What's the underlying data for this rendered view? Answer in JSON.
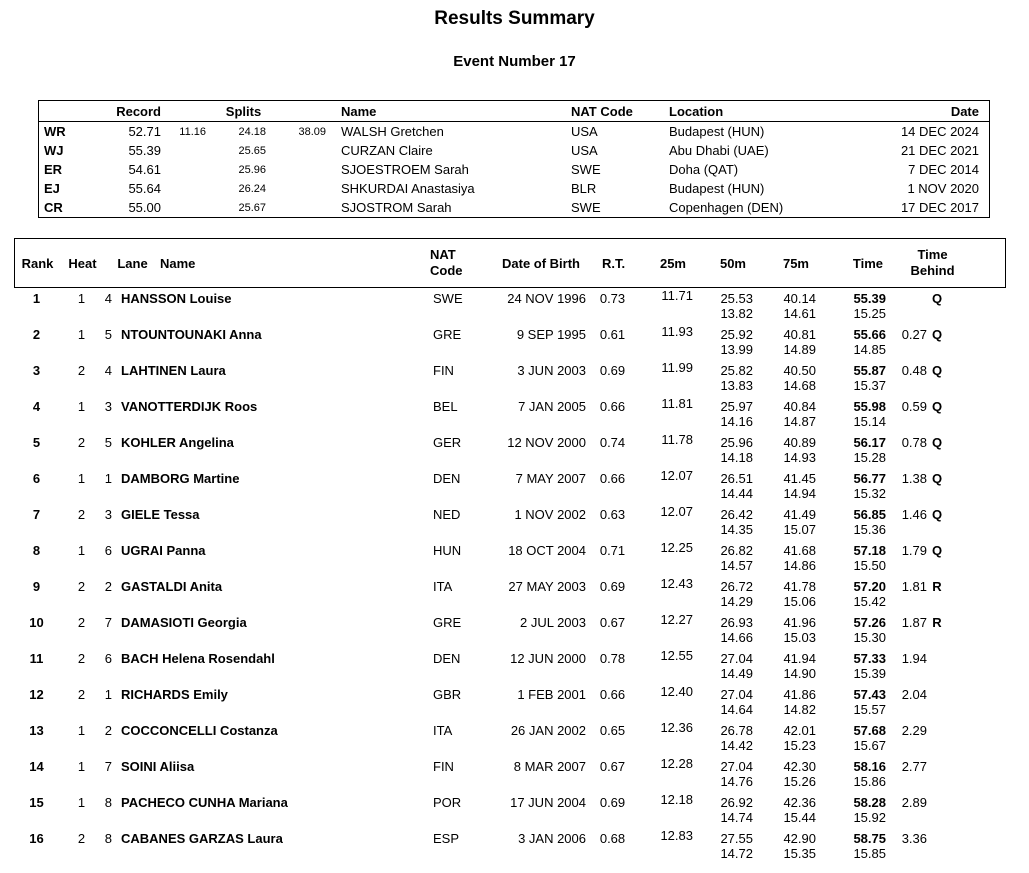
{
  "header": {
    "title": "Results Summary",
    "subtitle": "Event Number 17"
  },
  "colors": {
    "text": "#000000",
    "background": "#ffffff",
    "border": "#000000"
  },
  "records_table": {
    "headers": {
      "record": "Record",
      "splits": "Splits",
      "name": "Name",
      "nat_code": "NAT Code",
      "location": "Location",
      "date": "Date"
    },
    "rows": [
      {
        "tag": "WR",
        "time": "52.71",
        "split1": "11.16",
        "split2": "24.18",
        "split3": "38.09",
        "name": "WALSH Gretchen",
        "nat": "USA",
        "location": "Budapest (HUN)",
        "date": "14 DEC 2024"
      },
      {
        "tag": "WJ",
        "time": "55.39",
        "split1": "",
        "split2": "25.65",
        "split3": "",
        "name": "CURZAN Claire",
        "nat": "USA",
        "location": "Abu Dhabi (UAE)",
        "date": "21 DEC 2021"
      },
      {
        "tag": "ER",
        "time": "54.61",
        "split1": "",
        "split2": "25.96",
        "split3": "",
        "name": "SJOESTROEM Sarah",
        "nat": "SWE",
        "location": "Doha (QAT)",
        "date": "7 DEC 2014"
      },
      {
        "tag": "EJ",
        "time": "55.64",
        "split1": "",
        "split2": "26.24",
        "split3": "",
        "name": "SHKURDAI Anastasiya",
        "nat": "BLR",
        "location": "Budapest (HUN)",
        "date": "1 NOV 2020"
      },
      {
        "tag": "CR",
        "time": "55.00",
        "split1": "",
        "split2": "25.67",
        "split3": "",
        "name": "SJOSTROM Sarah",
        "nat": "SWE",
        "location": "Copenhagen (DEN)",
        "date": "17 DEC 2017"
      }
    ]
  },
  "results_table": {
    "headers": {
      "rank": "Rank",
      "heat": "Heat",
      "lane": "Lane",
      "name": "Name",
      "nat_code": "NAT\nCode",
      "date_of_birth": "Date of Birth",
      "rt": "R.T.",
      "m25": "25m",
      "m50": "50m",
      "m75": "75m",
      "time": "Time",
      "time_behind": "Time\nBehind"
    },
    "rows": [
      {
        "rank": "1",
        "heat": "1",
        "lane": "4",
        "name": "HANSSON Louise",
        "nat": "SWE",
        "dob": "24 NOV 1996",
        "rt": "0.73",
        "m25": "11.71",
        "m50": "25.53",
        "m50s": "13.82",
        "m75": "40.14",
        "m75s": "14.61",
        "time": "55.39",
        "times": "15.25",
        "behind": "",
        "qual": "Q"
      },
      {
        "rank": "2",
        "heat": "1",
        "lane": "5",
        "name": "NTOUNTOUNAKI Anna",
        "nat": "GRE",
        "dob": "9 SEP 1995",
        "rt": "0.61",
        "m25": "11.93",
        "m50": "25.92",
        "m50s": "13.99",
        "m75": "40.81",
        "m75s": "14.89",
        "time": "55.66",
        "times": "14.85",
        "behind": "0.27",
        "qual": "Q"
      },
      {
        "rank": "3",
        "heat": "2",
        "lane": "4",
        "name": "LAHTINEN Laura",
        "nat": "FIN",
        "dob": "3 JUN 2003",
        "rt": "0.69",
        "m25": "11.99",
        "m50": "25.82",
        "m50s": "13.83",
        "m75": "40.50",
        "m75s": "14.68",
        "time": "55.87",
        "times": "15.37",
        "behind": "0.48",
        "qual": "Q"
      },
      {
        "rank": "4",
        "heat": "1",
        "lane": "3",
        "name": "VANOTTERDIJK Roos",
        "nat": "BEL",
        "dob": "7 JAN 2005",
        "rt": "0.66",
        "m25": "11.81",
        "m50": "25.97",
        "m50s": "14.16",
        "m75": "40.84",
        "m75s": "14.87",
        "time": "55.98",
        "times": "15.14",
        "behind": "0.59",
        "qual": "Q"
      },
      {
        "rank": "5",
        "heat": "2",
        "lane": "5",
        "name": "KOHLER Angelina",
        "nat": "GER",
        "dob": "12 NOV 2000",
        "rt": "0.74",
        "m25": "11.78",
        "m50": "25.96",
        "m50s": "14.18",
        "m75": "40.89",
        "m75s": "14.93",
        "time": "56.17",
        "times": "15.28",
        "behind": "0.78",
        "qual": "Q"
      },
      {
        "rank": "6",
        "heat": "1",
        "lane": "1",
        "name": "DAMBORG Martine",
        "nat": "DEN",
        "dob": "7 MAY 2007",
        "rt": "0.66",
        "m25": "12.07",
        "m50": "26.51",
        "m50s": "14.44",
        "m75": "41.45",
        "m75s": "14.94",
        "time": "56.77",
        "times": "15.32",
        "behind": "1.38",
        "qual": "Q"
      },
      {
        "rank": "7",
        "heat": "2",
        "lane": "3",
        "name": "GIELE Tessa",
        "nat": "NED",
        "dob": "1 NOV 2002",
        "rt": "0.63",
        "m25": "12.07",
        "m50": "26.42",
        "m50s": "14.35",
        "m75": "41.49",
        "m75s": "15.07",
        "time": "56.85",
        "times": "15.36",
        "behind": "1.46",
        "qual": "Q"
      },
      {
        "rank": "8",
        "heat": "1",
        "lane": "6",
        "name": "UGRAI Panna",
        "nat": "HUN",
        "dob": "18 OCT 2004",
        "rt": "0.71",
        "m25": "12.25",
        "m50": "26.82",
        "m50s": "14.57",
        "m75": "41.68",
        "m75s": "14.86",
        "time": "57.18",
        "times": "15.50",
        "behind": "1.79",
        "qual": "Q"
      },
      {
        "rank": "9",
        "heat": "2",
        "lane": "2",
        "name": "GASTALDI Anita",
        "nat": "ITA",
        "dob": "27 MAY 2003",
        "rt": "0.69",
        "m25": "12.43",
        "m50": "26.72",
        "m50s": "14.29",
        "m75": "41.78",
        "m75s": "15.06",
        "time": "57.20",
        "times": "15.42",
        "behind": "1.81",
        "qual": "R"
      },
      {
        "rank": "10",
        "heat": "2",
        "lane": "7",
        "name": "DAMASIOTI Georgia",
        "nat": "GRE",
        "dob": "2 JUL 2003",
        "rt": "0.67",
        "m25": "12.27",
        "m50": "26.93",
        "m50s": "14.66",
        "m75": "41.96",
        "m75s": "15.03",
        "time": "57.26",
        "times": "15.30",
        "behind": "1.87",
        "qual": "R"
      },
      {
        "rank": "11",
        "heat": "2",
        "lane": "6",
        "name": "BACH Helena Rosendahl",
        "nat": "DEN",
        "dob": "12 JUN 2000",
        "rt": "0.78",
        "m25": "12.55",
        "m50": "27.04",
        "m50s": "14.49",
        "m75": "41.94",
        "m75s": "14.90",
        "time": "57.33",
        "times": "15.39",
        "behind": "1.94",
        "qual": ""
      },
      {
        "rank": "12",
        "heat": "2",
        "lane": "1",
        "name": "RICHARDS Emily",
        "nat": "GBR",
        "dob": "1 FEB 2001",
        "rt": "0.66",
        "m25": "12.40",
        "m50": "27.04",
        "m50s": "14.64",
        "m75": "41.86",
        "m75s": "14.82",
        "time": "57.43",
        "times": "15.57",
        "behind": "2.04",
        "qual": ""
      },
      {
        "rank": "13",
        "heat": "1",
        "lane": "2",
        "name": "COCCONCELLI Costanza",
        "nat": "ITA",
        "dob": "26 JAN 2002",
        "rt": "0.65",
        "m25": "12.36",
        "m50": "26.78",
        "m50s": "14.42",
        "m75": "42.01",
        "m75s": "15.23",
        "time": "57.68",
        "times": "15.67",
        "behind": "2.29",
        "qual": ""
      },
      {
        "rank": "14",
        "heat": "1",
        "lane": "7",
        "name": "SOINI Aliisa",
        "nat": "FIN",
        "dob": "8 MAR 2007",
        "rt": "0.67",
        "m25": "12.28",
        "m50": "27.04",
        "m50s": "14.76",
        "m75": "42.30",
        "m75s": "15.26",
        "time": "58.16",
        "times": "15.86",
        "behind": "2.77",
        "qual": ""
      },
      {
        "rank": "15",
        "heat": "1",
        "lane": "8",
        "name": "PACHECO CUNHA Mariana",
        "nat": "POR",
        "dob": "17 JUN 2004",
        "rt": "0.69",
        "m25": "12.18",
        "m50": "26.92",
        "m50s": "14.74",
        "m75": "42.36",
        "m75s": "15.44",
        "time": "58.28",
        "times": "15.92",
        "behind": "2.89",
        "qual": ""
      },
      {
        "rank": "16",
        "heat": "2",
        "lane": "8",
        "name": "CABANES GARZAS Laura",
        "nat": "ESP",
        "dob": "3 JAN 2006",
        "rt": "0.68",
        "m25": "12.83",
        "m50": "27.55",
        "m50s": "14.72",
        "m75": "42.90",
        "m75s": "15.35",
        "time": "58.75",
        "times": "15.85",
        "behind": "3.36",
        "qual": ""
      }
    ]
  }
}
